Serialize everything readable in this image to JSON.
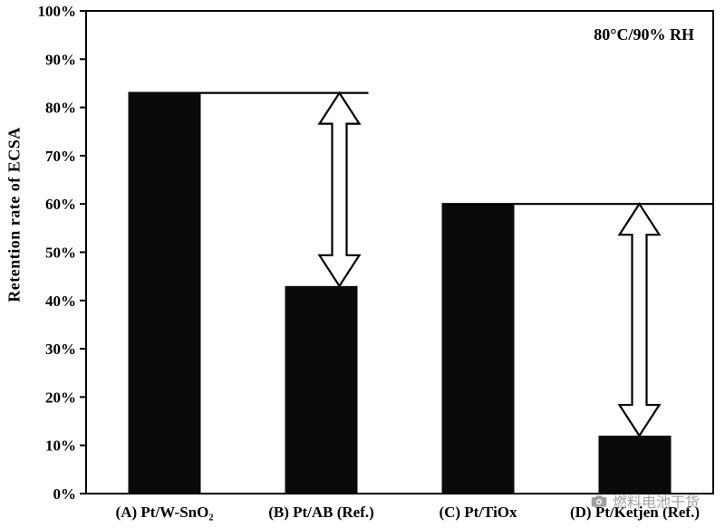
{
  "chart_data": {
    "type": "bar",
    "categories": [
      "(A) Pt/W-SnO₂",
      "(B) Pt/AB (Ref.)",
      "(C) Pt/TiOx",
      "(D) Pt/Ketjen (Ref.)"
    ],
    "values": [
      83,
      43,
      60,
      12
    ],
    "title": "",
    "xlabel": "",
    "ylabel": "Retention rate of ECSA",
    "ylim": [
      0,
      100
    ],
    "ytick_step": 10,
    "ytick_suffix": "%",
    "grid": false,
    "legend": null,
    "bar_color": "#0a0a0a",
    "annotation": "80°C/90% RH",
    "reference_lines": [
      {
        "value": 83,
        "from_index": 0,
        "to_index": 1,
        "to_edge": false
      },
      {
        "value": 60,
        "from_index": 2,
        "to_index": 3,
        "to_edge": true
      }
    ],
    "arrows": [
      {
        "from": 83,
        "to": 43,
        "index": 1,
        "offset": 20
      },
      {
        "from": 60,
        "to": 12,
        "index": 3,
        "offset": 5
      }
    ]
  },
  "watermark": {
    "text": "燃料电池干货",
    "icon": "camera-icon"
  }
}
